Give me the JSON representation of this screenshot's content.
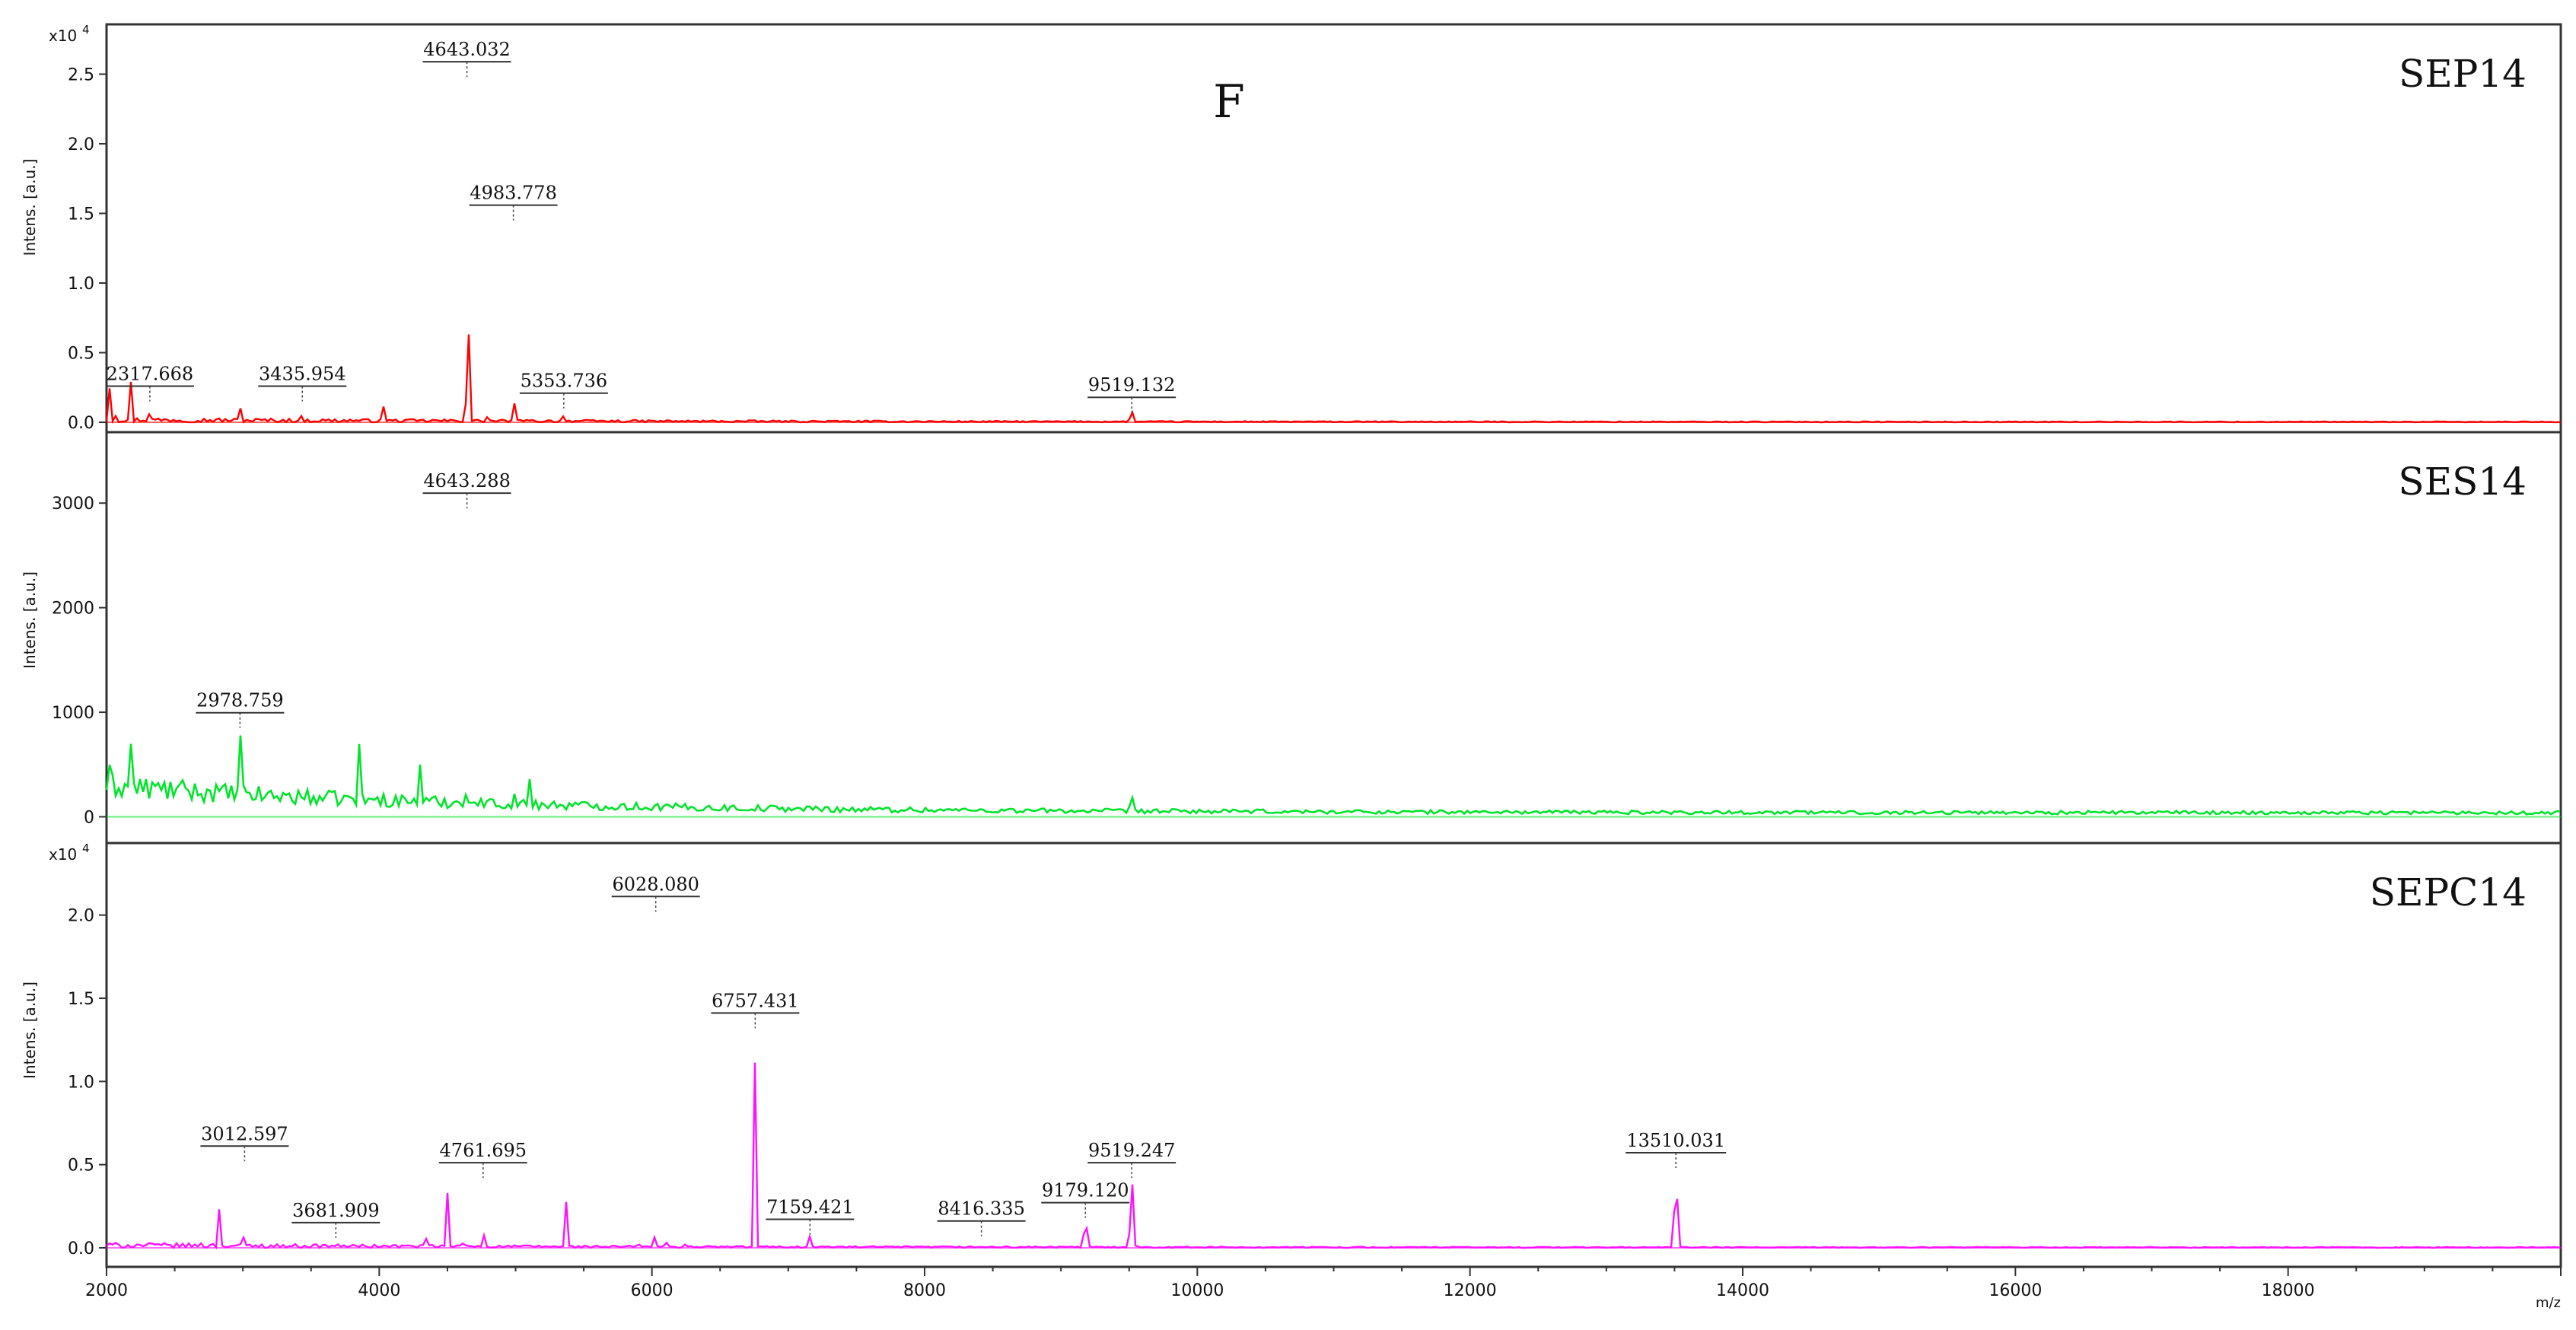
{
  "figure_letter": "F",
  "xaxis_unit": "m/z",
  "chart_data": [
    {
      "type": "line",
      "name": "SEP14",
      "color": "#ff0000",
      "ylabel": "Intens. [a.u.]",
      "multiplier": "x10",
      "exponent": "4",
      "xlim": [
        2000,
        20000
      ],
      "ylim": [
        0,
        2.65
      ],
      "yticks": [
        "0.0",
        "0.5",
        "1.0",
        "1.5",
        "2.0",
        "2.5"
      ],
      "peaks": [
        {
          "x": 2020,
          "y": 0.3
        },
        {
          "x": 2060,
          "y": 0.25
        },
        {
          "x": 2180,
          "y": 0.28
        },
        {
          "x": 2317.668,
          "y": 0.15
        },
        {
          "x": 2500,
          "y": 0.08
        },
        {
          "x": 2980,
          "y": 0.1
        },
        {
          "x": 3435.954,
          "y": 0.15
        },
        {
          "x": 3800,
          "y": 0.08
        },
        {
          "x": 4030,
          "y": 0.12
        },
        {
          "x": 4400,
          "y": 0.18
        },
        {
          "x": 4643.032,
          "y": 2.48
        },
        {
          "x": 4660,
          "y": 0.95
        },
        {
          "x": 4800,
          "y": 0.82
        },
        {
          "x": 4983.778,
          "y": 1.45
        },
        {
          "x": 5050,
          "y": 0.15
        },
        {
          "x": 5353.736,
          "y": 0.1
        },
        {
          "x": 7300,
          "y": 0.03
        },
        {
          "x": 9519.132,
          "y": 0.07
        }
      ],
      "labels": [
        {
          "x": 2317.668,
          "y": 0.15,
          "text": "2317.668"
        },
        {
          "x": 3435.954,
          "y": 0.15,
          "text": "3435.954"
        },
        {
          "x": 4643.032,
          "y": 2.48,
          "text": "4643.032"
        },
        {
          "x": 4983.778,
          "y": 1.45,
          "text": "4983.778"
        },
        {
          "x": 5353.736,
          "y": 0.1,
          "text": "5353.736"
        },
        {
          "x": 9519.132,
          "y": 0.07,
          "text": "9519.132"
        }
      ]
    },
    {
      "type": "line",
      "name": "SES14",
      "color": "#00e52a",
      "ylabel": "Intens. [a.u.]",
      "multiplier": "",
      "exponent": "",
      "xlim": [
        2000,
        20000
      ],
      "ylim": [
        -120,
        3300
      ],
      "yticks": [
        "0",
        "1000",
        "2000",
        "3000"
      ],
      "peaks": [
        {
          "x": 2030,
          "y": 950
        },
        {
          "x": 2080,
          "y": 600
        },
        {
          "x": 2180,
          "y": 450
        },
        {
          "x": 2978.759,
          "y": 850
        },
        {
          "x": 3850,
          "y": 700
        },
        {
          "x": 4300,
          "y": 380
        },
        {
          "x": 4643.288,
          "y": 2950
        },
        {
          "x": 4800,
          "y": 780
        },
        {
          "x": 4983,
          "y": 1300
        },
        {
          "x": 5100,
          "y": 400
        },
        {
          "x": 9519,
          "y": 120
        }
      ],
      "labels": [
        {
          "x": 2978.759,
          "y": 850,
          "text": "2978.759"
        },
        {
          "x": 4643.288,
          "y": 2950,
          "text": "4643.288"
        }
      ]
    },
    {
      "type": "line",
      "name": "SEPC14",
      "color": "#ff10ff",
      "ylabel": "Intens. [a.u.]",
      "multiplier": "x10",
      "exponent": "4",
      "xlim": [
        2000,
        20000
      ],
      "ylim": [
        0,
        2.25
      ],
      "yticks": [
        "0.0",
        "0.5",
        "1.0",
        "1.5",
        "2.0"
      ],
      "peaks": [
        {
          "x": 2700,
          "y": 0.1
        },
        {
          "x": 2830,
          "y": 0.42
        },
        {
          "x": 3012.597,
          "y": 0.52
        },
        {
          "x": 3681.909,
          "y": 0.06
        },
        {
          "x": 4350,
          "y": 0.18
        },
        {
          "x": 4500,
          "y": 0.32
        },
        {
          "x": 4620,
          "y": 0.28
        },
        {
          "x": 4761.695,
          "y": 0.42
        },
        {
          "x": 5370,
          "y": 0.28
        },
        {
          "x": 5900,
          "y": 0.12
        },
        {
          "x": 6028.08,
          "y": 2.02
        },
        {
          "x": 6100,
          "y": 0.25
        },
        {
          "x": 6250,
          "y": 0.18
        },
        {
          "x": 6757.431,
          "y": 1.32
        },
        {
          "x": 7159.421,
          "y": 0.08
        },
        {
          "x": 8416.335,
          "y": 0.07
        },
        {
          "x": 9179.12,
          "y": 0.18
        },
        {
          "x": 9519.247,
          "y": 0.42
        },
        {
          "x": 13510.031,
          "y": 0.48
        }
      ],
      "labels": [
        {
          "x": 3012.597,
          "y": 0.52,
          "text": "3012.597"
        },
        {
          "x": 3681.909,
          "y": 0.06,
          "text": "3681.909"
        },
        {
          "x": 4761.695,
          "y": 0.42,
          "text": "4761.695"
        },
        {
          "x": 6028.08,
          "y": 2.02,
          "text": "6028.080"
        },
        {
          "x": 6757.431,
          "y": 1.32,
          "text": "6757.431"
        },
        {
          "x": 7159.421,
          "y": 0.08,
          "text": "7159.421"
        },
        {
          "x": 8416.335,
          "y": 0.07,
          "text": "8416.335"
        },
        {
          "x": 9179.12,
          "y": 0.18,
          "text": "9179.120"
        },
        {
          "x": 9519.247,
          "y": 0.42,
          "text": "9519.247"
        },
        {
          "x": 13510.031,
          "y": 0.48,
          "text": "13510.031"
        }
      ]
    }
  ],
  "xticks": [
    "2000",
    "4000",
    "6000",
    "8000",
    "10000",
    "12000",
    "14000",
    "16000",
    "18000"
  ]
}
